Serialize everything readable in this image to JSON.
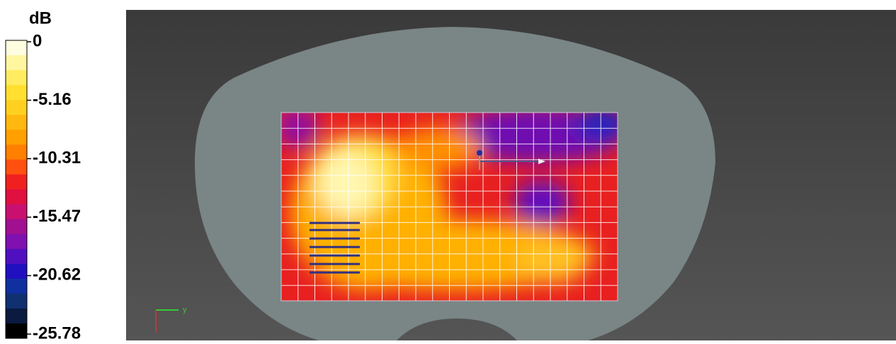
{
  "legend": {
    "title": "dB",
    "labels": [
      "0",
      "-5.16",
      "-10.31",
      "-15.47",
      "-20.62",
      "-25.78"
    ]
  },
  "axes_gizmo": {
    "y_label": "y"
  }
}
